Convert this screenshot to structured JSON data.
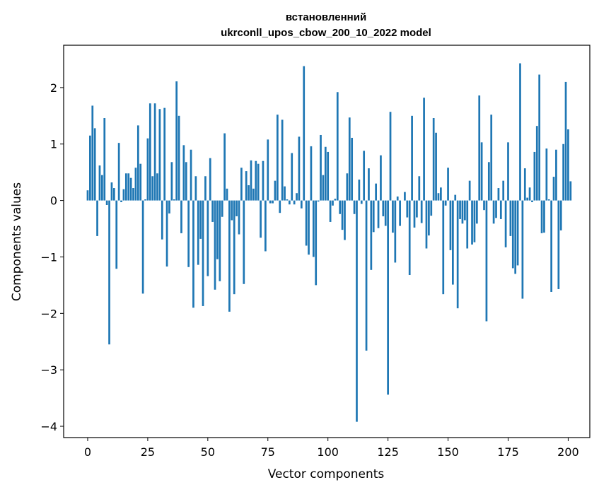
{
  "chart_data": {
    "type": "bar",
    "title_line1": "встановленний",
    "title_line2": "ukrconll_upos_cbow_200_10_2022 model",
    "xlabel": "Vector components",
    "ylabel": "Components values",
    "xlim": [
      -10,
      209
    ],
    "ylim": [
      -4.2,
      2.75
    ],
    "x_ticks": [
      0,
      25,
      50,
      75,
      100,
      125,
      150,
      175,
      200
    ],
    "y_ticks": [
      2,
      1,
      0,
      -1,
      -2,
      -3,
      -4
    ],
    "y_tick_labels": [
      "2",
      "1",
      "0",
      "−1",
      "−2",
      "−3",
      "−4"
    ],
    "grid": false,
    "bar_color": "#1f77b4",
    "values": [
      0.18,
      1.15,
      1.68,
      1.28,
      -0.63,
      0.62,
      0.45,
      1.46,
      -0.08,
      -2.55,
      0.32,
      0.22,
      -1.21,
      1.02,
      -0.03,
      0.2,
      0.48,
      0.48,
      0.4,
      0.22,
      0.58,
      1.33,
      0.65,
      -1.65,
      0.02,
      1.1,
      1.72,
      0.43,
      1.72,
      0.48,
      1.62,
      -0.69,
      1.64,
      -1.17,
      -0.23,
      0.68,
      0.02,
      2.11,
      1.5,
      -0.58,
      0.98,
      0.68,
      -1.18,
      0.9,
      -1.9,
      0.43,
      -1.14,
      -0.68,
      -1.87,
      0.43,
      -1.34,
      0.75,
      -0.38,
      -1.58,
      -1.04,
      -1.43,
      -0.29,
      1.19,
      0.21,
      -1.97,
      -0.35,
      -1.66,
      -0.28,
      -0.6,
      0.58,
      -1.48,
      0.52,
      0.27,
      0.71,
      0.21,
      0.7,
      0.65,
      -0.66,
      0.7,
      -0.9,
      1.08,
      -0.05,
      -0.05,
      0.35,
      1.52,
      -0.22,
      1.43,
      0.25,
      0.02,
      -0.07,
      0.84,
      -0.07,
      0.13,
      1.13,
      -0.14,
      2.38,
      -0.8,
      -0.96,
      0.96,
      -1.0,
      -1.5,
      -0.02,
      1.16,
      0.45,
      0.95,
      0.86,
      -0.38,
      -0.09,
      0.03,
      1.92,
      -0.24,
      -0.52,
      -0.7,
      0.48,
      1.47,
      1.11,
      -0.24,
      -3.92,
      0.37,
      -0.06,
      0.88,
      -2.66,
      0.57,
      -1.23,
      -0.56,
      0.3,
      -0.49,
      0.8,
      -0.28,
      -0.45,
      -3.44,
      1.57,
      -0.57,
      -1.1,
      0.07,
      -0.45,
      0.0,
      0.15,
      -0.3,
      -1.32,
      1.5,
      -0.48,
      -0.3,
      0.43,
      -0.4,
      1.82,
      -0.85,
      -0.62,
      -0.27,
      1.46,
      1.2,
      0.13,
      0.23,
      -1.66,
      -0.09,
      0.58,
      -0.88,
      -1.49,
      0.1,
      -1.91,
      -0.33,
      -0.41,
      -0.35,
      -0.85,
      0.35,
      -0.78,
      -0.74,
      -0.41,
      1.86,
      1.03,
      -0.17,
      -2.14,
      0.68,
      1.52,
      -0.41,
      -0.31,
      0.22,
      -0.33,
      0.35,
      -0.83,
      1.03,
      -0.63,
      -1.2,
      -1.3,
      -1.15,
      2.43,
      -1.74,
      0.57,
      0.05,
      0.23,
      -0.03,
      0.86,
      1.32,
      2.23,
      -0.58,
      -0.57,
      0.92,
      0.02,
      -1.62,
      0.42,
      0.9,
      -1.57,
      -0.53,
      1.0,
      2.1,
      1.26,
      0.34
    ]
  }
}
